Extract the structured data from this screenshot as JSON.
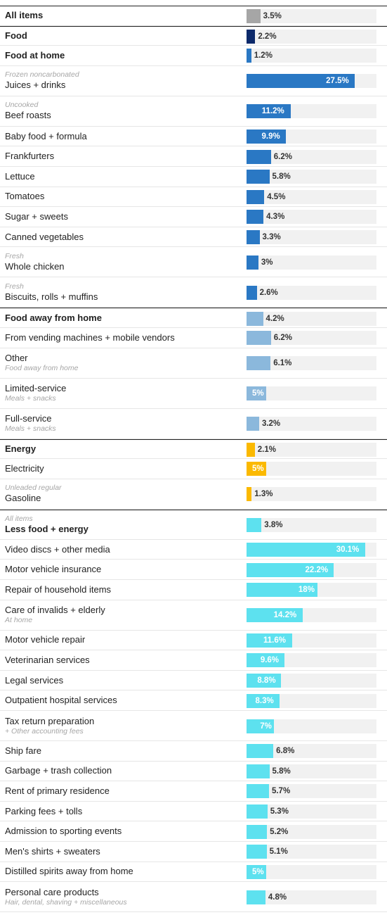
{
  "colors": {
    "all_items": "#a6a6a6",
    "food": "#0d2a6b",
    "food_at_home": "#2a78c4",
    "food_away": "#8bb8dc",
    "energy": "#fbb900",
    "core": "#5de1ef",
    "track": "#f1f1f1"
  },
  "chart_data": {
    "type": "bar",
    "orientation": "horizontal",
    "xlim": [
      0,
      33
    ],
    "rows": [
      {
        "label": "All items",
        "sublabel_above": "",
        "sublabel_below": "",
        "value": 3.5,
        "value_label": "3.5%",
        "bold": true,
        "color": "#a6a6a6",
        "group_start": true
      },
      {
        "label": "Food",
        "sublabel_above": "",
        "sublabel_below": "",
        "value": 2.2,
        "value_label": "2.2%",
        "bold": true,
        "color": "#0d2a6b",
        "group_start": true
      },
      {
        "label": "Food at home",
        "sublabel_above": "",
        "sublabel_below": "",
        "value": 1.2,
        "value_label": "1.2%",
        "bold": true,
        "color": "#2a78c4"
      },
      {
        "label": "Juices + drinks",
        "sublabel_above": "Frozen noncarbonated",
        "sublabel_below": "",
        "value": 27.5,
        "value_label": "27.5%",
        "bold": false,
        "color": "#2a78c4"
      },
      {
        "label": "Beef roasts",
        "sublabel_above": "Uncooked",
        "sublabel_below": "",
        "value": 11.2,
        "value_label": "11.2%",
        "bold": false,
        "color": "#2a78c4"
      },
      {
        "label": "Baby food + formula",
        "sublabel_above": "",
        "sublabel_below": "",
        "value": 9.9,
        "value_label": "9.9%",
        "bold": false,
        "color": "#2a78c4"
      },
      {
        "label": "Frankfurters",
        "sublabel_above": "",
        "sublabel_below": "",
        "value": 6.2,
        "value_label": "6.2%",
        "bold": false,
        "color": "#2a78c4"
      },
      {
        "label": "Lettuce",
        "sublabel_above": "",
        "sublabel_below": "",
        "value": 5.8,
        "value_label": "5.8%",
        "bold": false,
        "color": "#2a78c4"
      },
      {
        "label": "Tomatoes",
        "sublabel_above": "",
        "sublabel_below": "",
        "value": 4.5,
        "value_label": "4.5%",
        "bold": false,
        "color": "#2a78c4"
      },
      {
        "label": "Sugar + sweets",
        "sublabel_above": "",
        "sublabel_below": "",
        "value": 4.3,
        "value_label": "4.3%",
        "bold": false,
        "color": "#2a78c4"
      },
      {
        "label": "Canned vegetables",
        "sublabel_above": "",
        "sublabel_below": "",
        "value": 3.3,
        "value_label": "3.3%",
        "bold": false,
        "color": "#2a78c4"
      },
      {
        "label": "Whole chicken",
        "sublabel_above": "Fresh",
        "sublabel_below": "",
        "value": 3.0,
        "value_label": "3%",
        "bold": false,
        "color": "#2a78c4"
      },
      {
        "label": "Biscuits, rolls + muffins",
        "sublabel_above": "Fresh",
        "sublabel_below": "",
        "value": 2.6,
        "value_label": "2.6%",
        "bold": false,
        "color": "#2a78c4"
      },
      {
        "label": "Food away from home",
        "sublabel_above": "",
        "sublabel_below": "",
        "value": 4.2,
        "value_label": "4.2%",
        "bold": true,
        "color": "#8bb8dc",
        "group_start": true
      },
      {
        "label": "From vending machines + mobile vendors",
        "sublabel_above": "",
        "sublabel_below": "",
        "value": 6.2,
        "value_label": "6.2%",
        "bold": false,
        "color": "#8bb8dc"
      },
      {
        "label": "Other",
        "sublabel_above": "",
        "sublabel_below": "Food away from home",
        "value": 6.1,
        "value_label": "6.1%",
        "bold": false,
        "color": "#8bb8dc"
      },
      {
        "label": "Limited-service",
        "sublabel_above": "",
        "sublabel_below": "Meals + snacks",
        "value": 5.0,
        "value_label": "5%",
        "bold": false,
        "color": "#8bb8dc"
      },
      {
        "label": "Full-service",
        "sublabel_above": "",
        "sublabel_below": "Meals + snacks",
        "value": 3.2,
        "value_label": "3.2%",
        "bold": false,
        "color": "#8bb8dc"
      },
      {
        "label": "Energy",
        "sublabel_above": "",
        "sublabel_below": "",
        "value": 2.1,
        "value_label": "2.1%",
        "bold": true,
        "color": "#fbb900",
        "group_start": true
      },
      {
        "label": "Electricity",
        "sublabel_above": "",
        "sublabel_below": "",
        "value": 5.0,
        "value_label": "5%",
        "bold": false,
        "color": "#fbb900"
      },
      {
        "label": "Gasoline",
        "sublabel_above": "Unleaded regular",
        "sublabel_below": "",
        "value": 1.3,
        "value_label": "1.3%",
        "bold": false,
        "color": "#fbb900"
      },
      {
        "label": "Less food + energy",
        "sublabel_above": "All items",
        "sublabel_below": "",
        "value": 3.8,
        "value_label": "3.8%",
        "bold": true,
        "color": "#5de1ef",
        "group_start": true
      },
      {
        "label": "Video discs + other media",
        "sublabel_above": "",
        "sublabel_below": "",
        "value": 30.1,
        "value_label": "30.1%",
        "bold": false,
        "color": "#5de1ef"
      },
      {
        "label": "Motor vehicle insurance",
        "sublabel_above": "",
        "sublabel_below": "",
        "value": 22.2,
        "value_label": "22.2%",
        "bold": false,
        "color": "#5de1ef"
      },
      {
        "label": "Repair of household items",
        "sublabel_above": "",
        "sublabel_below": "",
        "value": 18.0,
        "value_label": "18%",
        "bold": false,
        "color": "#5de1ef"
      },
      {
        "label": "Care of invalids + elderly",
        "sublabel_above": "",
        "sublabel_below": "At home",
        "value": 14.2,
        "value_label": "14.2%",
        "bold": false,
        "color": "#5de1ef"
      },
      {
        "label": "Motor vehicle repair",
        "sublabel_above": "",
        "sublabel_below": "",
        "value": 11.6,
        "value_label": "11.6%",
        "bold": false,
        "color": "#5de1ef"
      },
      {
        "label": "Veterinarian services",
        "sublabel_above": "",
        "sublabel_below": "",
        "value": 9.6,
        "value_label": "9.6%",
        "bold": false,
        "color": "#5de1ef"
      },
      {
        "label": "Legal services",
        "sublabel_above": "",
        "sublabel_below": "",
        "value": 8.8,
        "value_label": "8.8%",
        "bold": false,
        "color": "#5de1ef"
      },
      {
        "label": "Outpatient hospital services",
        "sublabel_above": "",
        "sublabel_below": "",
        "value": 8.3,
        "value_label": "8.3%",
        "bold": false,
        "color": "#5de1ef"
      },
      {
        "label": "Tax return preparation",
        "sublabel_above": "",
        "sublabel_below": "+ Other accounting fees",
        "value": 7.0,
        "value_label": "7%",
        "bold": false,
        "color": "#5de1ef"
      },
      {
        "label": "Ship fare",
        "sublabel_above": "",
        "sublabel_below": "",
        "value": 6.8,
        "value_label": "6.8%",
        "bold": false,
        "color": "#5de1ef"
      },
      {
        "label": "Garbage + trash collection",
        "sublabel_above": "",
        "sublabel_below": "",
        "value": 5.8,
        "value_label": "5.8%",
        "bold": false,
        "color": "#5de1ef"
      },
      {
        "label": "Rent of primary residence",
        "sublabel_above": "",
        "sublabel_below": "",
        "value": 5.7,
        "value_label": "5.7%",
        "bold": false,
        "color": "#5de1ef"
      },
      {
        "label": "Parking fees + tolls",
        "sublabel_above": "",
        "sublabel_below": "",
        "value": 5.3,
        "value_label": "5.3%",
        "bold": false,
        "color": "#5de1ef"
      },
      {
        "label": "Admission to sporting events",
        "sublabel_above": "",
        "sublabel_below": "",
        "value": 5.2,
        "value_label": "5.2%",
        "bold": false,
        "color": "#5de1ef"
      },
      {
        "label": "Men's shirts + sweaters",
        "sublabel_above": "",
        "sublabel_below": "",
        "value": 5.1,
        "value_label": "5.1%",
        "bold": false,
        "color": "#5de1ef"
      },
      {
        "label": "Distilled spirits away from home",
        "sublabel_above": "",
        "sublabel_below": "",
        "value": 5.0,
        "value_label": "5%",
        "bold": false,
        "color": "#5de1ef"
      },
      {
        "label": "Personal care products",
        "sublabel_above": "",
        "sublabel_below": "Hair, dental, shaving + miscellaneous",
        "value": 4.8,
        "value_label": "4.8%",
        "bold": false,
        "color": "#5de1ef"
      }
    ]
  }
}
